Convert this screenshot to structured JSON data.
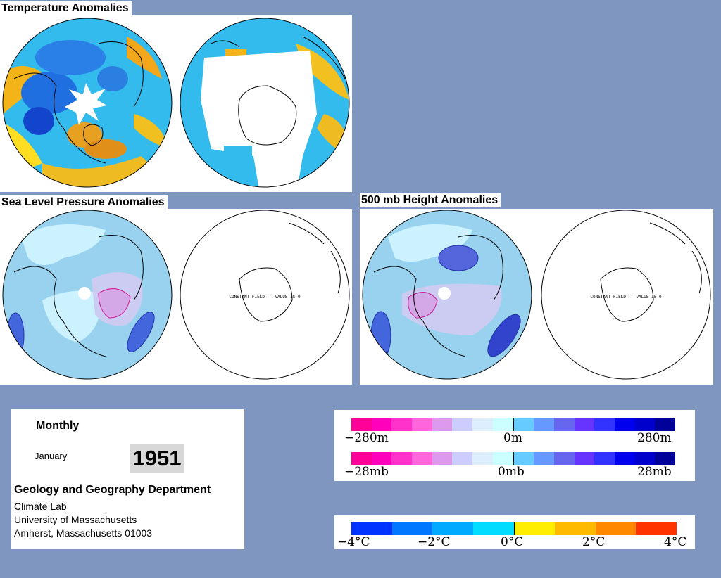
{
  "titles": {
    "temperature": "Temperature Anomalies",
    "slp": "Sea Level Pressure Anomalies",
    "height": "500 mb Height Anomalies"
  },
  "map_note": "CONSTANT FIELD -- VALUE IS 0",
  "info": {
    "period": "Monthly",
    "month": "January",
    "year": "1951",
    "department": "Geology and Geography Department",
    "line1": "Climate Lab",
    "line2": "University of Massachusetts",
    "line3": "Amherst, Massachusetts 01003"
  },
  "height_scale": {
    "left": "−280m",
    "mid": "0m",
    "right": "280m",
    "colors": [
      "#ff0099",
      "#ff00bb",
      "#ff33cc",
      "#ff66dd",
      "#dd99ee",
      "#ccccff",
      "#ddeeff",
      "#ccffff",
      "#66ccff",
      "#6699ff",
      "#6666ee",
      "#6633ff",
      "#3333ff",
      "#0000ee",
      "#0000cc",
      "#000099"
    ]
  },
  "pressure_scale": {
    "left": "−28mb",
    "mid": "0mb",
    "right": "28mb",
    "colors": [
      "#ff0099",
      "#ff00bb",
      "#ff33cc",
      "#ff66dd",
      "#dd99ee",
      "#ccccff",
      "#ddeeff",
      "#ccffff",
      "#66ccff",
      "#6699ff",
      "#6666ee",
      "#6633ff",
      "#3333ff",
      "#0000ee",
      "#0000cc",
      "#000099"
    ]
  },
  "temp_scale": {
    "labels": [
      "−4°C",
      "−2°C",
      "0°C",
      "2°C",
      "4°C"
    ],
    "colors": [
      "#0033ff",
      "#0077ff",
      "#00aaff",
      "#00ddff",
      "#ffee00",
      "#ffbb00",
      "#ff8800",
      "#ff3300"
    ]
  }
}
